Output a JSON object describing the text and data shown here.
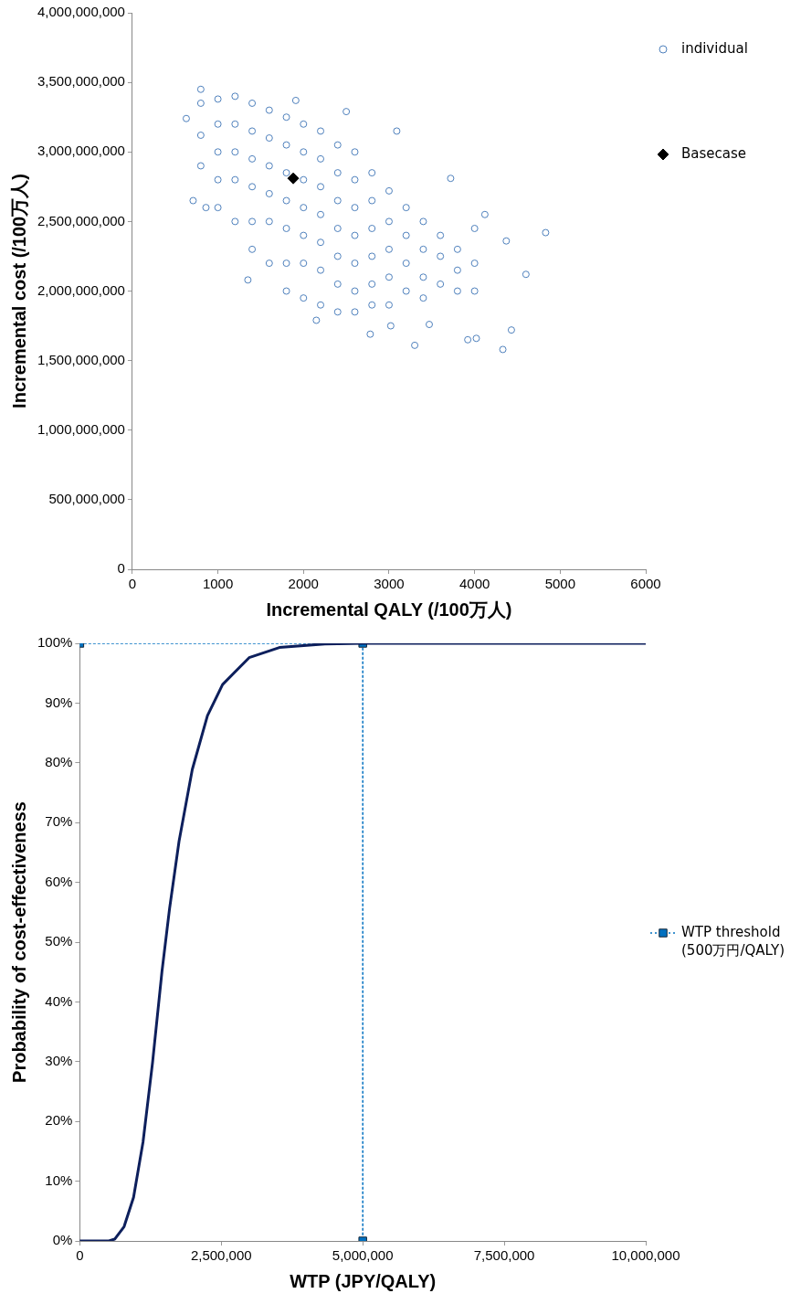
{
  "chart_data": [
    {
      "type": "scatter",
      "xlabel": "Incremental QALY (/100万人)",
      "ylabel": "Incremental cost (/100万人)",
      "xlim": [
        0,
        6000
      ],
      "xticks": [
        0,
        1000,
        2000,
        3000,
        4000,
        5000,
        6000
      ],
      "ylim": [
        0,
        4000000000
      ],
      "yticks": [
        {
          "value": 0,
          "label": "0"
        },
        {
          "value": 500000000,
          "label": "500,000,000"
        },
        {
          "value": 1000000000,
          "label": "1,000,000,000"
        },
        {
          "value": 1500000000,
          "label": "1,500,000,000"
        },
        {
          "value": 2000000000,
          "label": "2,000,000,000"
        },
        {
          "value": 2500000000,
          "label": "2,500,000,000"
        },
        {
          "value": 3000000000,
          "label": "3,000,000,000"
        },
        {
          "value": 3500000000,
          "label": "3,500,000,000"
        },
        {
          "value": 4000000000,
          "label": "4,000,000,000"
        }
      ],
      "grid": false,
      "legend": "right top",
      "series": [
        {
          "name": "individual",
          "color": "#4f81bd",
          "marker": "circle",
          "x": [
            4830,
            4330,
            4600,
            4430,
            3920,
            4020,
            3300,
            2780,
            2150,
            1350,
            710,
            860,
            2500,
            1910,
            800,
            630,
            3090,
            3720,
            4120,
            4370,
            3470,
            3020,
            800,
            800,
            800,
            1000,
            1000,
            1000,
            1000,
            1000,
            1200,
            1200,
            1200,
            1200,
            1200,
            1400,
            1400,
            1400,
            1400,
            1400,
            1400,
            1600,
            1600,
            1600,
            1600,
            1600,
            1600,
            1800,
            1800,
            1800,
            1800,
            1800,
            1800,
            1800,
            2000,
            2000,
            2000,
            2000,
            2000,
            2000,
            2000,
            2200,
            2200,
            2200,
            2200,
            2200,
            2200,
            2200,
            2400,
            2400,
            2400,
            2400,
            2400,
            2400,
            2400,
            2600,
            2600,
            2600,
            2600,
            2600,
            2600,
            2600,
            2800,
            2800,
            2800,
            2800,
            2800,
            2800,
            3000,
            3000,
            3000,
            3000,
            3000,
            3200,
            3200,
            3200,
            3200,
            3400,
            3400,
            3400,
            3400,
            3600,
            3600,
            3600,
            3800,
            3800,
            3800,
            4000,
            4000,
            4000
          ],
          "values": [
            2420000000,
            1580000000,
            2120000000,
            1720000000,
            1650000000,
            1660000000,
            1610000000,
            1690000000,
            1790000000,
            2080000000,
            2650000000,
            2600000000,
            3290000000,
            3370000000,
            3450000000,
            3240000000,
            3150000000,
            2810000000,
            2550000000,
            2360000000,
            1760000000,
            1750000000,
            3350000000,
            3120000000,
            2900000000,
            3380000000,
            3200000000,
            3000000000,
            2800000000,
            2600000000,
            3400000000,
            3200000000,
            3000000000,
            2800000000,
            2500000000,
            3350000000,
            3150000000,
            2950000000,
            2750000000,
            2500000000,
            2300000000,
            3300000000,
            3100000000,
            2900000000,
            2700000000,
            2500000000,
            2200000000,
            3250000000,
            3050000000,
            2850000000,
            2650000000,
            2450000000,
            2200000000,
            2000000000,
            3200000000,
            3000000000,
            2800000000,
            2600000000,
            2400000000,
            2200000000,
            1950000000,
            3150000000,
            2950000000,
            2750000000,
            2550000000,
            2350000000,
            2150000000,
            1900000000,
            3050000000,
            2850000000,
            2650000000,
            2450000000,
            2250000000,
            2050000000,
            1850000000,
            3000000000,
            2800000000,
            2600000000,
            2400000000,
            2200000000,
            2000000000,
            1850000000,
            2850000000,
            2650000000,
            2450000000,
            2250000000,
            2050000000,
            1900000000,
            2720000000,
            2500000000,
            2300000000,
            2100000000,
            1900000000,
            2600000000,
            2400000000,
            2200000000,
            2000000000,
            2500000000,
            2300000000,
            2100000000,
            1950000000,
            2400000000,
            2250000000,
            2050000000,
            2300000000,
            2150000000,
            2000000000,
            2450000000,
            2200000000,
            2000000000
          ]
        },
        {
          "name": "Basecase",
          "color": "#000000",
          "marker": "diamond",
          "x": [
            1880
          ],
          "values": [
            2810000000
          ]
        }
      ]
    },
    {
      "type": "line",
      "xlabel": "WTP (JPY/QALY)",
      "ylabel": "Probability of cost-effectiveness",
      "xlim": [
        0,
        10000000
      ],
      "xticks": [
        0,
        {
          "value": 2500000,
          "label": "2,500,000"
        },
        {
          "value": 5000000,
          "label": "5,000,000"
        },
        {
          "value": 7500000,
          "label": "7,500,000"
        },
        {
          "value": 10000000,
          "label": "10,000,000"
        }
      ],
      "ylim": [
        0,
        100
      ],
      "yticks": [
        {
          "value": 0,
          "label": "0%"
        },
        {
          "value": 10,
          "label": "10%"
        },
        {
          "value": 20,
          "label": "20%"
        },
        {
          "value": 30,
          "label": "30%"
        },
        {
          "value": 40,
          "label": "40%"
        },
        {
          "value": 50,
          "label": "50%"
        },
        {
          "value": 60,
          "label": "60%"
        },
        {
          "value": 70,
          "label": "70%"
        },
        {
          "value": 80,
          "label": "80%"
        },
        {
          "value": 90,
          "label": "90%"
        },
        {
          "value": 100,
          "label": "100%"
        }
      ],
      "grid": false,
      "legend": "right",
      "series": [
        {
          "color": "#0d1f5c",
          "marker": "none",
          "line_style": "solid",
          "x": [
            0,
            515000,
            616000,
            783000,
            950000,
            1118000,
            1285000,
            1452000,
            1586000,
            1754000,
            1988000,
            2256000,
            2523000,
            2992000,
            3527000,
            4331000,
            5000000,
            10000000
          ],
          "values": [
            0,
            0,
            0.3,
            2.4,
            7.3,
            16.6,
            29.8,
            45.1,
            55.6,
            66.9,
            78.9,
            87.9,
            93.1,
            97.6,
            99.3,
            99.9,
            100,
            100
          ]
        },
        {
          "name": "WTP threshold (500万円/QALY)",
          "color": "#0070c0",
          "marker": "square",
          "line_style": "dotted",
          "x": [
            0,
            5000000,
            5000000
          ],
          "values": [
            100,
            100,
            0
          ]
        }
      ]
    }
  ]
}
